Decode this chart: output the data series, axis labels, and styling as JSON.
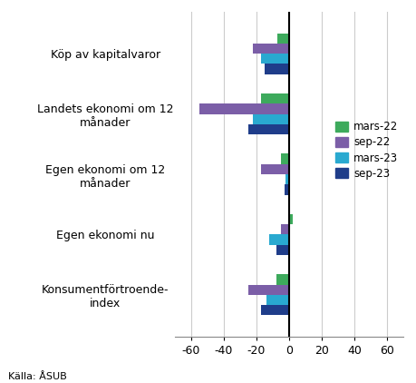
{
  "categories": [
    "Köp av kapitalvaror",
    "Landets ekonomi om 12\nmånader",
    "Egen ekonomi om 12\nmånader",
    "Egen ekonomi nu",
    "Konsumentförtroende-\nindex"
  ],
  "series": {
    "mars-22": [
      -7,
      -17,
      -5,
      2,
      -8
    ],
    "sep-22": [
      -22,
      -55,
      -17,
      -5,
      -25
    ],
    "mars-23": [
      -17,
      -22,
      -2,
      -12,
      -14
    ],
    "sep-23": [
      -15,
      -25,
      -3,
      -8,
      -17
    ]
  },
  "colors": {
    "mars-22": "#3daa5c",
    "sep-22": "#7b5ea7",
    "mars-23": "#29a9d0",
    "sep-23": "#1f3d8a"
  },
  "xlim": [
    -70,
    70
  ],
  "xticks": [
    -60,
    -40,
    -20,
    0,
    20,
    40,
    60
  ],
  "source": "Källa: ÅSUB",
  "bar_height": 0.17,
  "background_color": "#ffffff",
  "grid_color": "#cccccc"
}
